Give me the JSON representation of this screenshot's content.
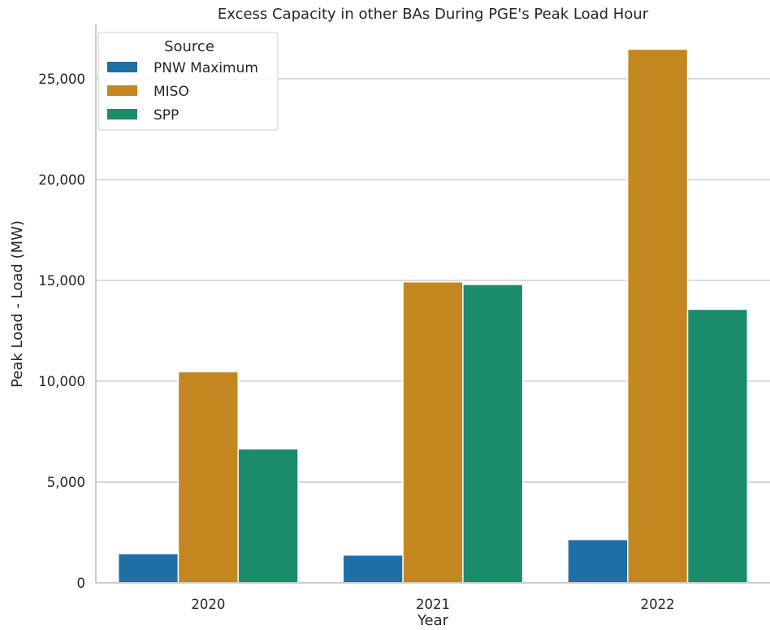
{
  "chart_data": {
    "type": "bar",
    "title": "Excess Capacity in other BAs During PGE's Peak Load Hour",
    "xlabel": "Year",
    "ylabel": "Peak Load - Load (MW)",
    "categories": [
      "2020",
      "2021",
      "2022"
    ],
    "series": [
      {
        "name": "PNW Maximum",
        "color": "#1f6fa5",
        "values": [
          1450,
          1380,
          2150
        ]
      },
      {
        "name": "MISO",
        "color": "#c4861f",
        "values": [
          10470,
          14930,
          26470
        ]
      },
      {
        "name": "SPP",
        "color": "#1a8c6b",
        "values": [
          6650,
          14800,
          13570
        ]
      }
    ],
    "ylim": [
      0,
      27700
    ],
    "yticks": [
      0,
      5000,
      10000,
      15000,
      20000,
      25000
    ],
    "ytick_labels": [
      "0",
      "5,000",
      "10,000",
      "15,000",
      "20,000",
      "25,000"
    ],
    "grid": "horizontal",
    "legend": {
      "title": "Source",
      "position": "top-left"
    }
  }
}
